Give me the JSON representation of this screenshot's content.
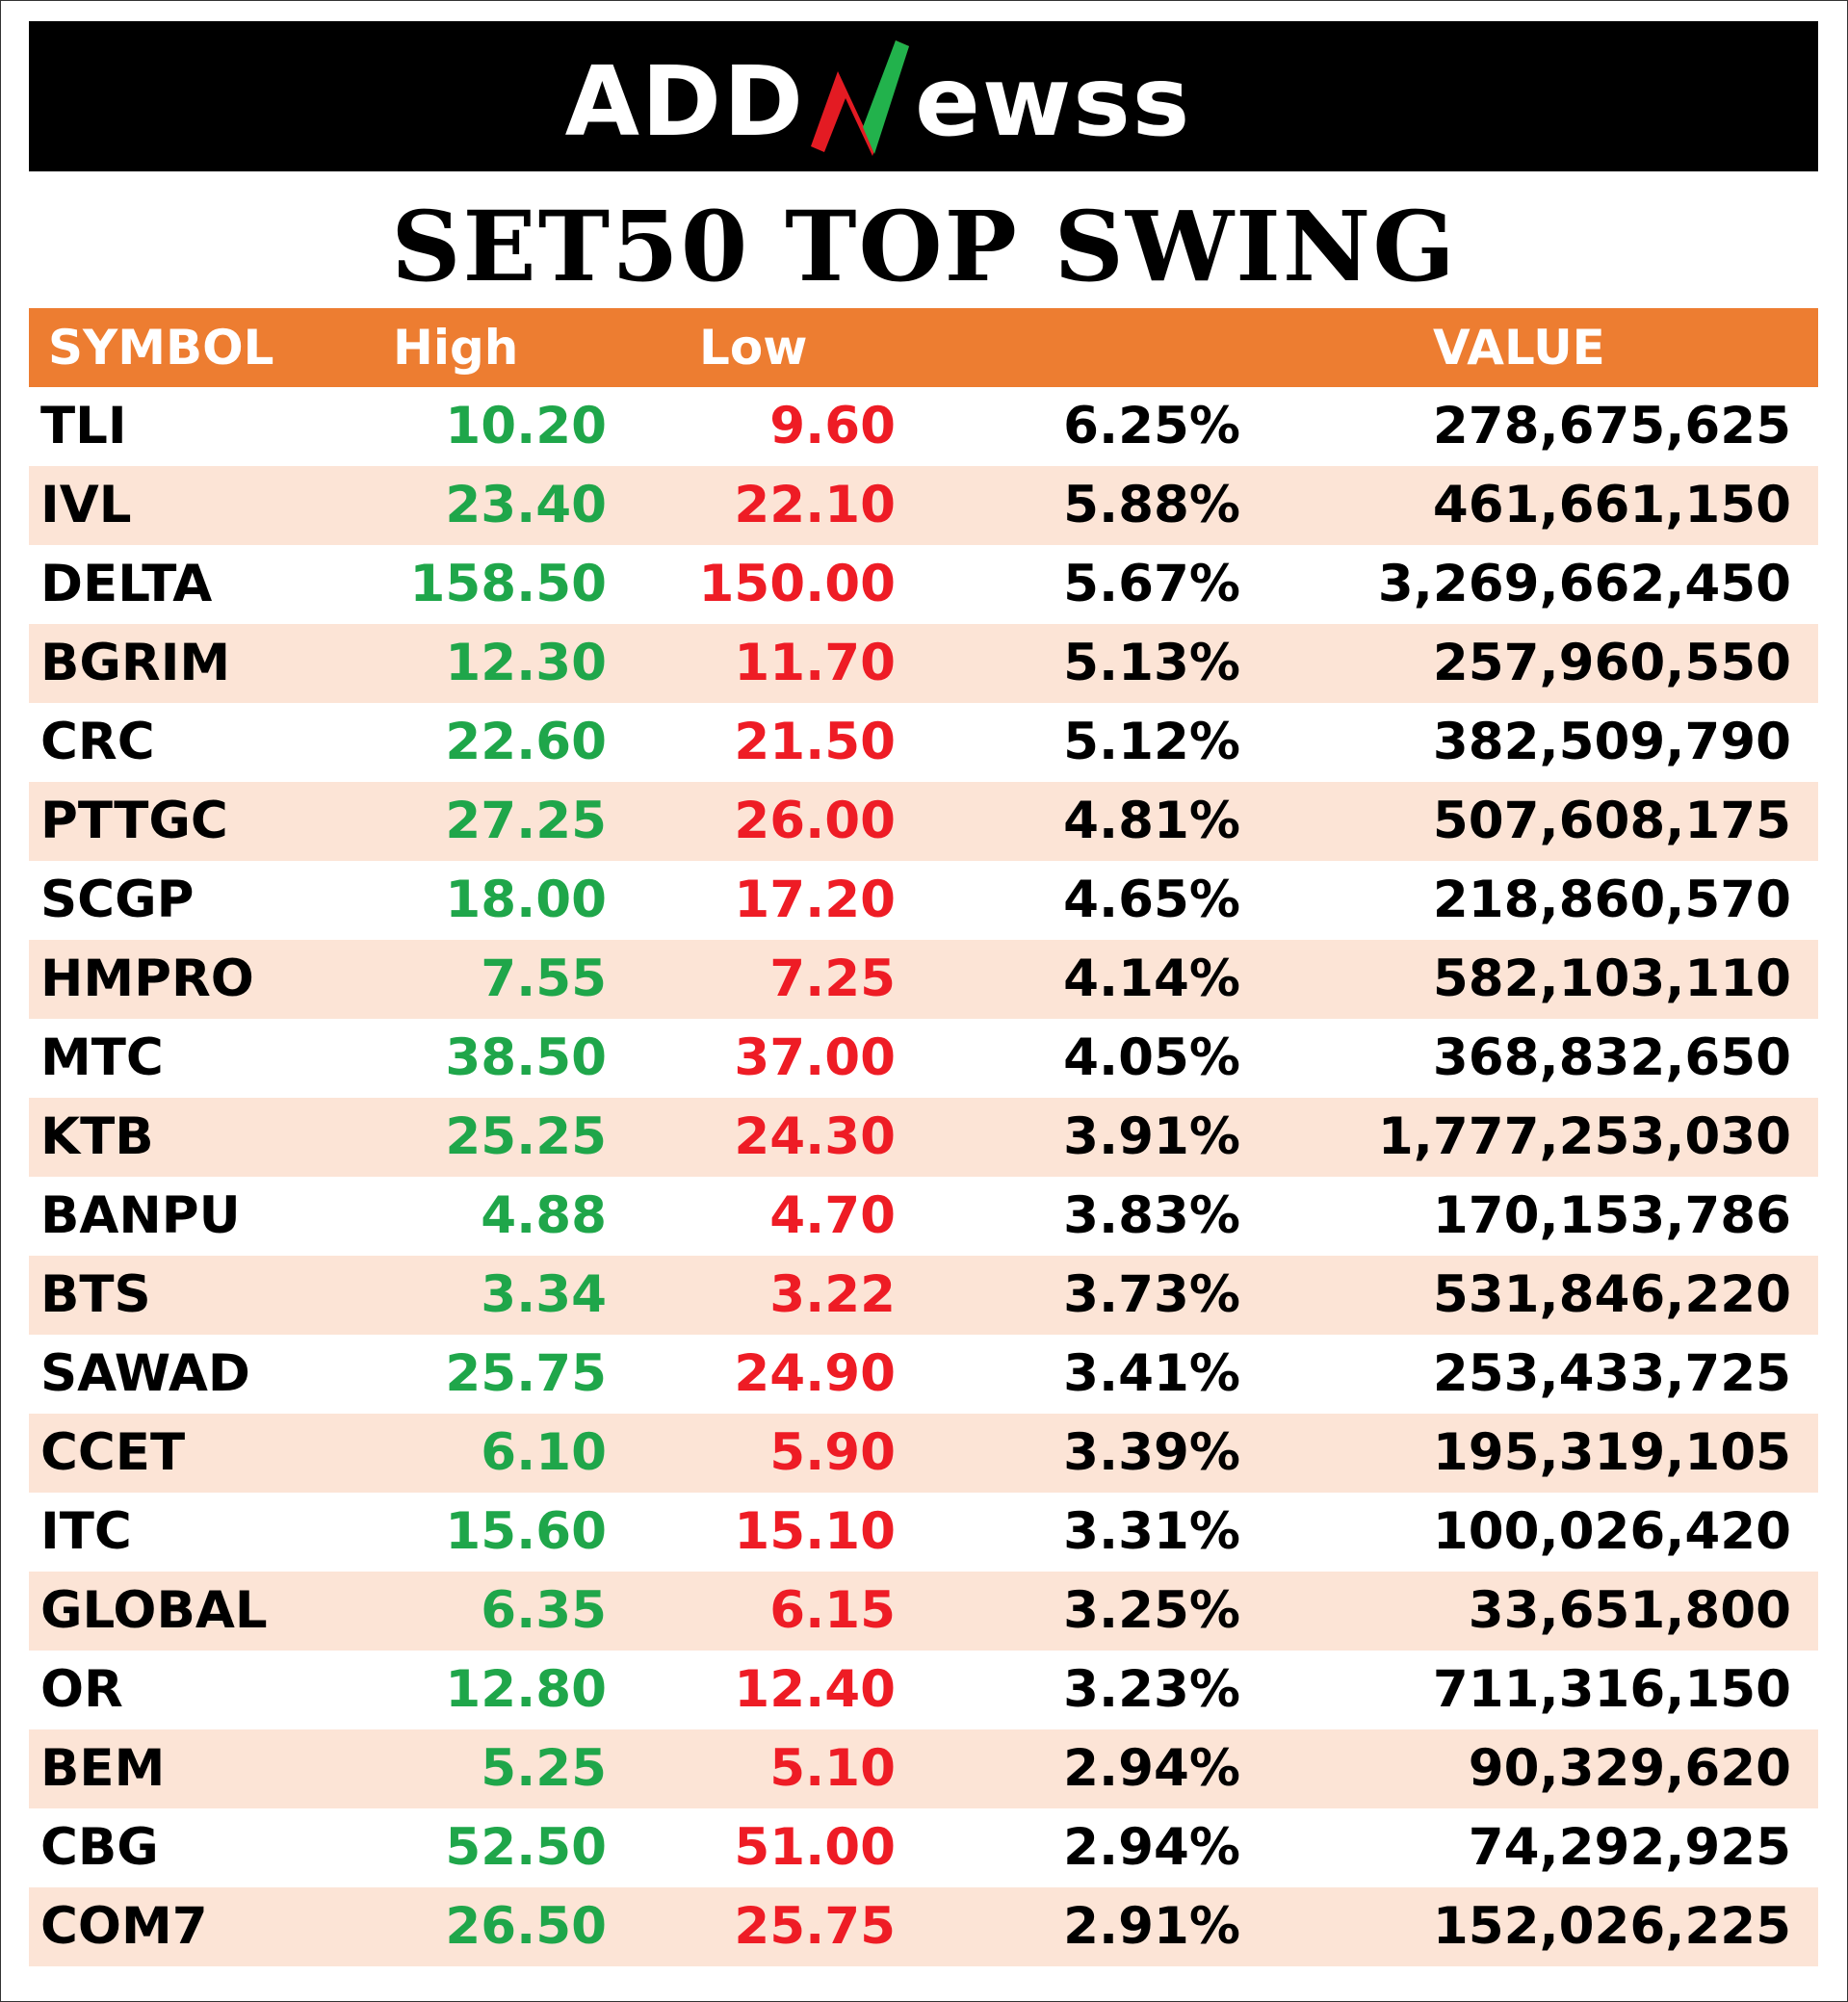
{
  "logo": {
    "text_a": "ADD",
    "text_b": "ewss",
    "icon": "n-check-mark-icon",
    "colors": {
      "bar": "#000000",
      "text": "#ffffff",
      "green": "#22b24c",
      "red": "#e31b23"
    }
  },
  "title": "SET50 TOP SWING",
  "table": {
    "headers": {
      "symbol": "SYMBOL",
      "high": "High",
      "low": "Low",
      "change": "",
      "value": "VALUE"
    },
    "colors": {
      "header_bg": "#ed7d31",
      "alt_row": "#fce4d6",
      "high": "#1fa64a",
      "low": "#ee1c25"
    },
    "rows": [
      {
        "symbol": "TLI",
        "high": "10.20",
        "low": "9.60",
        "pct": "6.25%",
        "value": "278,675,625"
      },
      {
        "symbol": "IVL",
        "high": "23.40",
        "low": "22.10",
        "pct": "5.88%",
        "value": "461,661,150"
      },
      {
        "symbol": "DELTA",
        "high": "158.50",
        "low": "150.00",
        "pct": "5.67%",
        "value": "3,269,662,450"
      },
      {
        "symbol": "BGRIM",
        "high": "12.30",
        "low": "11.70",
        "pct": "5.13%",
        "value": "257,960,550"
      },
      {
        "symbol": "CRC",
        "high": "22.60",
        "low": "21.50",
        "pct": "5.12%",
        "value": "382,509,790"
      },
      {
        "symbol": "PTTGC",
        "high": "27.25",
        "low": "26.00",
        "pct": "4.81%",
        "value": "507,608,175"
      },
      {
        "symbol": "SCGP",
        "high": "18.00",
        "low": "17.20",
        "pct": "4.65%",
        "value": "218,860,570"
      },
      {
        "symbol": "HMPRO",
        "high": "7.55",
        "low": "7.25",
        "pct": "4.14%",
        "value": "582,103,110"
      },
      {
        "symbol": "MTC",
        "high": "38.50",
        "low": "37.00",
        "pct": "4.05%",
        "value": "368,832,650"
      },
      {
        "symbol": "KTB",
        "high": "25.25",
        "low": "24.30",
        "pct": "3.91%",
        "value": "1,777,253,030"
      },
      {
        "symbol": "BANPU",
        "high": "4.88",
        "low": "4.70",
        "pct": "3.83%",
        "value": "170,153,786"
      },
      {
        "symbol": "BTS",
        "high": "3.34",
        "low": "3.22",
        "pct": "3.73%",
        "value": "531,846,220"
      },
      {
        "symbol": "SAWAD",
        "high": "25.75",
        "low": "24.90",
        "pct": "3.41%",
        "value": "253,433,725"
      },
      {
        "symbol": "CCET",
        "high": "6.10",
        "low": "5.90",
        "pct": "3.39%",
        "value": "195,319,105"
      },
      {
        "symbol": "ITC",
        "high": "15.60",
        "low": "15.10",
        "pct": "3.31%",
        "value": "100,026,420"
      },
      {
        "symbol": "GLOBAL",
        "high": "6.35",
        "low": "6.15",
        "pct": "3.25%",
        "value": "33,651,800"
      },
      {
        "symbol": "OR",
        "high": "12.80",
        "low": "12.40",
        "pct": "3.23%",
        "value": "711,316,150"
      },
      {
        "symbol": "BEM",
        "high": "5.25",
        "low": "5.10",
        "pct": "2.94%",
        "value": "90,329,620"
      },
      {
        "symbol": "CBG",
        "high": "52.50",
        "low": "51.00",
        "pct": "2.94%",
        "value": "74,292,925"
      },
      {
        "symbol": "COM7",
        "high": "26.50",
        "low": "25.75",
        "pct": "2.91%",
        "value": "152,026,225"
      }
    ]
  }
}
